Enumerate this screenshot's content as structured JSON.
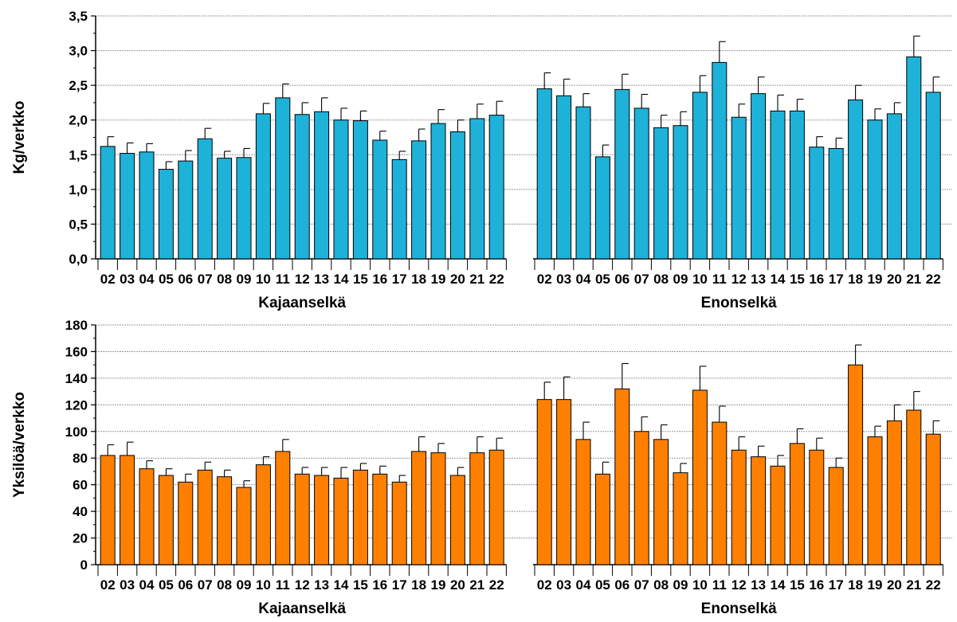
{
  "chart_data": [
    {
      "type": "bar",
      "ylabel": "Kg/verkko",
      "ylim": [
        0,
        3.5
      ],
      "ytick_step": 0.5,
      "ytick_labels": [
        "0,0",
        "0,5",
        "1,0",
        "1,5",
        "2,0",
        "2,5",
        "3,0",
        "3,5"
      ],
      "grid": true,
      "color": "#1eb2d9",
      "groups": [
        {
          "name": "Kajaanselkä",
          "categories": [
            "02",
            "03",
            "04",
            "05",
            "06",
            "07",
            "08",
            "09",
            "10",
            "11",
            "12",
            "13",
            "14",
            "15",
            "16",
            "17",
            "18",
            "19",
            "20",
            "21",
            "22"
          ],
          "values": [
            1.62,
            1.52,
            1.54,
            1.29,
            1.41,
            1.73,
            1.45,
            1.46,
            2.09,
            2.32,
            2.08,
            2.12,
            2.0,
            1.99,
            1.71,
            1.43,
            1.7,
            1.95,
            1.83,
            2.02,
            2.07
          ],
          "errors": [
            0.14,
            0.15,
            0.12,
            0.11,
            0.15,
            0.15,
            0.1,
            0.13,
            0.15,
            0.2,
            0.17,
            0.2,
            0.17,
            0.14,
            0.13,
            0.12,
            0.17,
            0.2,
            0.17,
            0.21,
            0.2
          ]
        },
        {
          "name": "Enonselkä",
          "categories": [
            "02",
            "03",
            "04",
            "05",
            "06",
            "07",
            "08",
            "09",
            "10",
            "11",
            "12",
            "13",
            "14",
            "15",
            "16",
            "17",
            "18",
            "19",
            "20",
            "21",
            "22"
          ],
          "values": [
            2.45,
            2.35,
            2.19,
            1.47,
            2.44,
            2.17,
            1.89,
            1.92,
            2.4,
            2.83,
            2.04,
            2.38,
            2.13,
            2.13,
            1.61,
            1.59,
            2.29,
            2.0,
            2.09,
            2.91,
            2.4
          ],
          "errors": [
            0.23,
            0.24,
            0.19,
            0.17,
            0.22,
            0.2,
            0.18,
            0.2,
            0.24,
            0.3,
            0.19,
            0.24,
            0.23,
            0.17,
            0.15,
            0.15,
            0.21,
            0.16,
            0.16,
            0.3,
            0.22
          ]
        }
      ]
    },
    {
      "type": "bar",
      "ylabel": "Yksilöä/verkko",
      "ylim": [
        0,
        180
      ],
      "ytick_step": 20,
      "ytick_labels": [
        "0",
        "20",
        "40",
        "60",
        "80",
        "100",
        "120",
        "140",
        "160",
        "180"
      ],
      "grid": true,
      "color": "#ff8000",
      "groups": [
        {
          "name": "Kajaanselkä",
          "categories": [
            "02",
            "03",
            "04",
            "05",
            "06",
            "07",
            "08",
            "09",
            "10",
            "11",
            "12",
            "13",
            "14",
            "15",
            "16",
            "17",
            "18",
            "19",
            "20",
            "21",
            "22"
          ],
          "values": [
            82,
            82,
            72,
            67,
            62,
            71,
            66,
            58,
            75,
            85,
            68,
            67,
            65,
            71,
            68,
            62,
            85,
            84,
            67,
            84,
            86
          ],
          "errors": [
            8,
            10,
            6,
            5,
            6,
            6,
            5,
            5,
            6,
            9,
            5,
            6,
            8,
            5,
            6,
            5,
            11,
            7,
            6,
            12,
            9
          ]
        },
        {
          "name": "Enonselkä",
          "categories": [
            "02",
            "03",
            "04",
            "05",
            "06",
            "07",
            "08",
            "09",
            "10",
            "11",
            "12",
            "13",
            "14",
            "15",
            "16",
            "17",
            "18",
            "19",
            "20",
            "21",
            "22"
          ],
          "values": [
            124,
            124,
            94,
            68,
            132,
            100,
            94,
            69,
            131,
            107,
            86,
            81,
            74,
            91,
            86,
            73,
            150,
            96,
            108,
            116,
            98
          ],
          "errors": [
            13,
            17,
            13,
            9,
            19,
            11,
            11,
            7,
            18,
            12,
            10,
            8,
            8,
            11,
            9,
            7,
            15,
            8,
            12,
            14,
            10
          ]
        }
      ]
    }
  ]
}
